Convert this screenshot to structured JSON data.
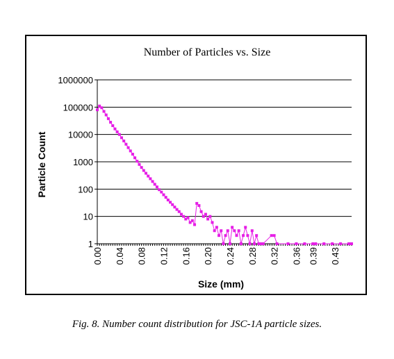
{
  "caption": "Fig. 8.  Number count distribution for JSC-1A particle sizes.",
  "colors": {
    "series": "#e61ee6",
    "grid": "#000000",
    "background": "#ffffff"
  },
  "chart_data": {
    "type": "line",
    "title": "Number of Particles vs. Size",
    "xlabel": "Size (mm)",
    "ylabel": "Particle Count",
    "yscale": "log",
    "ylim": [
      1,
      1000000
    ],
    "xlim": [
      0,
      0.46
    ],
    "grid": "horizontal",
    "y_ticks": [
      "1",
      "10",
      "100",
      "1000",
      "10000",
      "100000",
      "1000000"
    ],
    "x_ticks": [
      "0.00",
      "0.04",
      "0.08",
      "0.12",
      "0.16",
      "0.20",
      "0.24",
      "0.28",
      "0.32",
      "0.36",
      "0.39",
      "0.43"
    ],
    "x_tick_values": [
      0.0,
      0.04,
      0.08,
      0.12,
      0.16,
      0.2,
      0.24,
      0.28,
      0.32,
      0.36,
      0.39,
      0.43
    ],
    "series": [
      {
        "x": [
          0.0,
          0.004,
          0.008,
          0.012,
          0.016,
          0.02,
          0.024,
          0.028,
          0.032,
          0.036,
          0.04,
          0.044,
          0.048,
          0.052,
          0.056,
          0.06,
          0.064,
          0.068,
          0.072,
          0.076,
          0.08,
          0.084,
          0.088,
          0.092,
          0.096,
          0.1,
          0.104,
          0.108,
          0.112,
          0.116,
          0.12,
          0.124,
          0.128,
          0.132,
          0.136,
          0.14,
          0.144,
          0.148,
          0.152,
          0.156,
          0.16,
          0.164,
          0.168,
          0.172,
          0.176,
          0.18,
          0.184,
          0.188,
          0.192,
          0.196,
          0.2,
          0.204,
          0.208,
          0.212,
          0.216,
          0.22,
          0.224,
          0.228,
          0.232,
          0.236,
          0.24,
          0.244,
          0.248,
          0.252,
          0.256,
          0.26,
          0.264,
          0.268,
          0.272,
          0.276,
          0.28,
          0.284,
          0.288,
          0.292,
          0.296,
          0.3,
          0.315,
          0.32,
          0.325,
          0.345,
          0.36,
          0.375,
          0.39,
          0.395,
          0.41,
          0.425,
          0.44,
          0.455,
          0.46
        ],
        "y": [
          80000,
          110000,
          95000,
          70000,
          52000,
          38000,
          28000,
          21000,
          16000,
          12500,
          10000,
          7600,
          5800,
          4400,
          3300,
          2500,
          1900,
          1400,
          1050,
          800,
          620,
          480,
          380,
          300,
          240,
          190,
          150,
          120,
          95,
          78,
          62,
          50,
          40,
          33,
          27,
          22,
          18,
          15,
          12,
          10,
          8,
          9,
          6,
          7,
          5,
          30,
          25,
          15,
          10,
          12,
          8,
          10,
          6,
          3,
          4,
          2,
          3,
          1,
          2,
          3,
          1,
          4,
          3,
          2,
          3,
          1,
          2,
          4,
          2,
          1,
          3,
          1,
          2,
          1,
          1,
          1,
          2,
          2,
          1,
          1,
          1,
          1,
          1,
          1,
          1,
          1,
          1,
          1,
          1
        ]
      }
    ]
  }
}
